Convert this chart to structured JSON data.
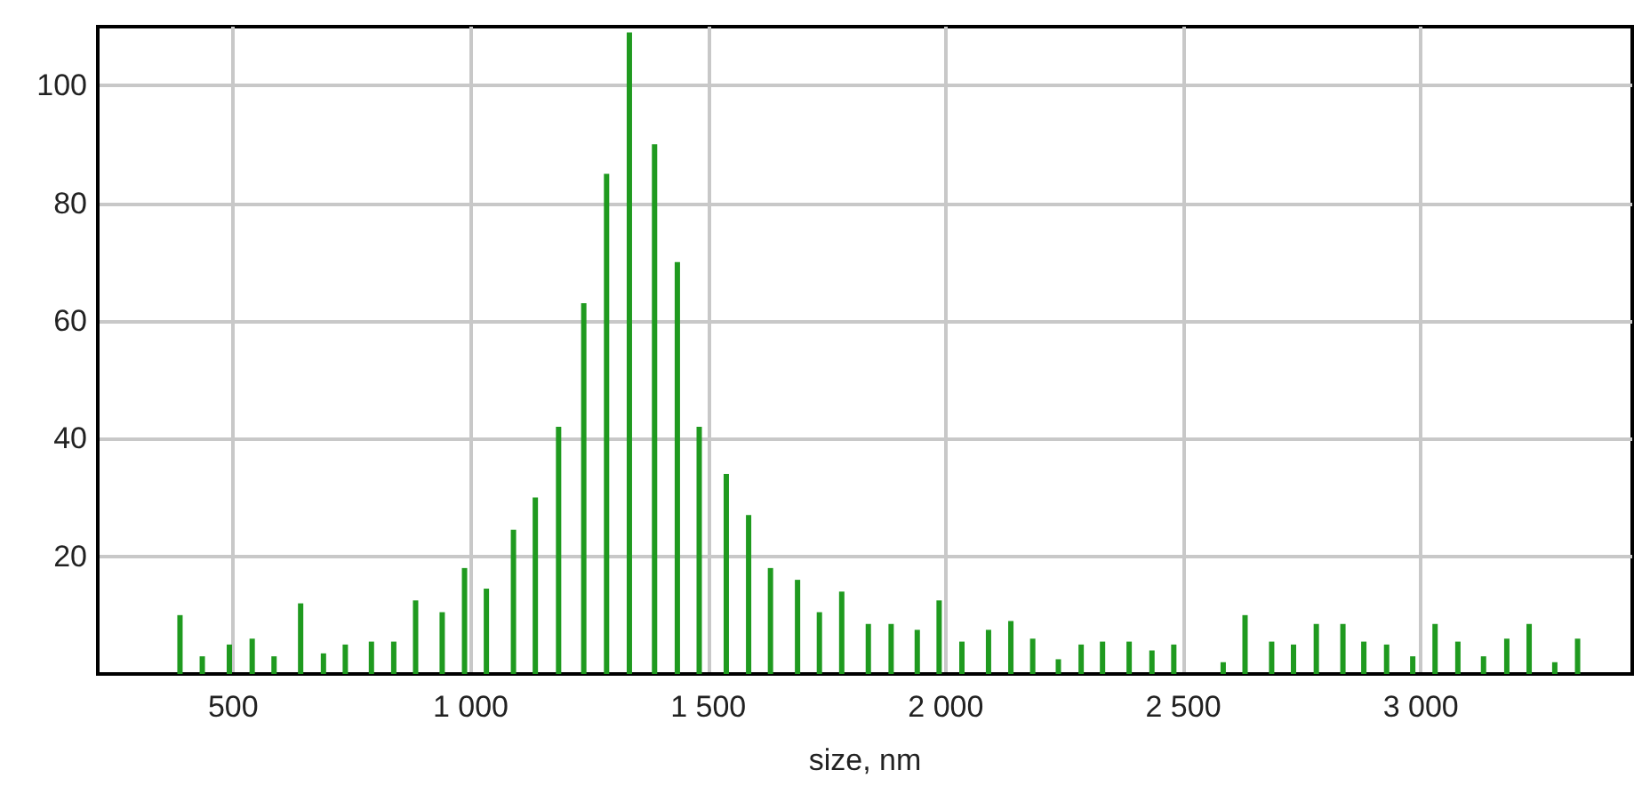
{
  "chart_data": {
    "type": "bar",
    "xlabel": "size, nm",
    "x": [
      388,
      435,
      492,
      540,
      586,
      642,
      690,
      736,
      791,
      838,
      884,
      940,
      987,
      1033,
      1090,
      1136,
      1185,
      1238,
      1286,
      1334,
      1387,
      1435,
      1481,
      1538,
      1585,
      1631,
      1688,
      1734,
      1781,
      1837,
      1885,
      1940,
      1986,
      2034,
      2090,
      2137,
      2183,
      2237,
      2285,
      2330,
      2386,
      2434,
      2480,
      2584,
      2630,
      2686,
      2732,
      2780,
      2836,
      2880,
      2928,
      2983,
      3030,
      3078,
      3132,
      3181,
      3228,
      3282,
      3330
    ],
    "values": [
      10,
      3,
      5,
      6,
      3,
      12,
      3.5,
      5,
      5.5,
      5.5,
      12.5,
      10.5,
      18,
      14.5,
      24.5,
      30,
      42,
      63,
      85,
      109,
      90,
      70,
      42,
      34,
      27,
      18,
      16,
      10.5,
      14,
      8.5,
      8.5,
      7.5,
      12.5,
      5.5,
      7.5,
      9,
      6,
      2.5,
      5,
      5.5,
      5.5,
      4,
      5,
      2,
      10,
      5.5,
      5,
      8.5,
      8.5,
      5.5,
      5,
      3,
      8.5,
      5.5,
      3,
      6,
      8.5,
      2,
      6
    ],
    "color": "#1f9a1f",
    "xlim": [
      215,
      3445
    ],
    "xticks": [
      500,
      {
        "value": 1000,
        "label": "1 000"
      },
      {
        "value": 1500,
        "label": "1 500"
      },
      {
        "value": 2000,
        "label": "2 000"
      },
      {
        "value": 2500,
        "label": "2 500"
      },
      {
        "value": 3000,
        "label": "3 000"
      }
    ],
    "ylim": [
      0,
      110
    ],
    "yticks": [
      20,
      40,
      60,
      80,
      100
    ],
    "grid": true
  }
}
